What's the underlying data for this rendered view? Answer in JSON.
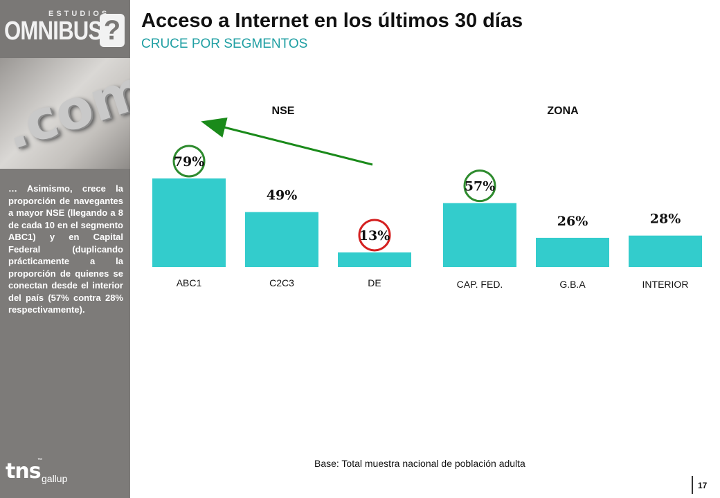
{
  "brand": {
    "small": "ESTUDIOS",
    "big": "OMNIBUS",
    "q": "?",
    "footer_logo": "tns",
    "footer_logo2": "gallup",
    "tm": "™"
  },
  "photo": {
    "text": ".com"
  },
  "header": {
    "title": "Acceso a Internet en los últimos 30 días",
    "subtitle": "CRUCE POR SEGMENTOS"
  },
  "sidebar": {
    "text": "… Asimismo, crece la proporción de navegantes a mayor NSE (llegando a 8 de cada 10 en el segmento ABC1) y en Capital Federal (duplicando prácticamente a la proporción de quienes se conectan desde el interior del país (57% contra 28% respectivamente)."
  },
  "footer": {
    "base_note": "Base: Total muestra nacional de población adulta",
    "page_number": "17"
  },
  "colors": {
    "bar": "#33cccc",
    "highlight_high": "#2e8b2e",
    "highlight_low": "#d42020",
    "arrow": "#1a8a1a"
  },
  "chart_data": [
    {
      "type": "bar",
      "title": "NSE",
      "categories": [
        "ABC1",
        "C2C3",
        "DE"
      ],
      "values": [
        79,
        49,
        13
      ],
      "value_labels": [
        "79%",
        "49%",
        "13%"
      ],
      "highlights": {
        "ABC1": "green",
        "DE": "red"
      },
      "ylim": [
        0,
        100
      ]
    },
    {
      "type": "bar",
      "title": "ZONA",
      "categories": [
        "CAP. FED.",
        "G.B.A",
        "INTERIOR"
      ],
      "values": [
        57,
        26,
        28
      ],
      "value_labels": [
        "57%",
        "26%",
        "28%"
      ],
      "highlights": {
        "CAP. FED.": "green"
      },
      "ylim": [
        0,
        100
      ]
    }
  ]
}
